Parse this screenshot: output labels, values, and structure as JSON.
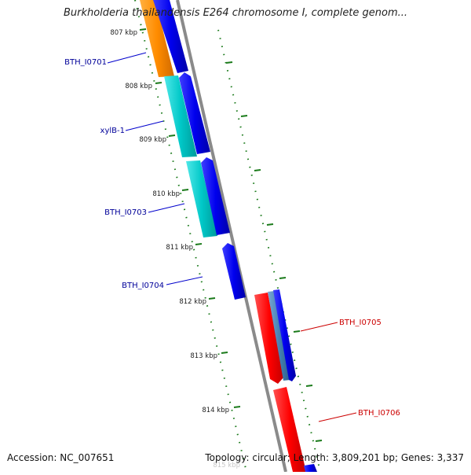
{
  "title": "Burkholderia thailandensis E264 chromosome I, complete genom...",
  "footer": {
    "accession": "Accession: NC_007651",
    "stats": "Topology: circular; Length: 3,809,201 bp; Genes: 3,337"
  },
  "ruler": {
    "ticks": [
      "807 kbp",
      "808 kbp",
      "809 kbp",
      "810 kbp",
      "811 kbp",
      "812 kbp",
      "813 kbp",
      "814 kbp"
    ],
    "partial_tick": "815 kbp"
  },
  "genes": [
    {
      "id": "BTH_I0701",
      "strand": "forward"
    },
    {
      "id": "xylB-1",
      "strand": "forward"
    },
    {
      "id": "BTH_I0703",
      "strand": "forward"
    },
    {
      "id": "BTH_I0704",
      "strand": "forward"
    },
    {
      "id": "BTH_I0705",
      "strand": "reverse"
    },
    {
      "id": "BTH_I0706",
      "strand": "reverse"
    }
  ],
  "colors": {
    "backbone": "#8a8a8a",
    "cds": "#0000ee",
    "orange_feature": "#ff8c00",
    "cyan_feature": "#00c8c8",
    "red_feature": "#ff0000",
    "steel_feature": "#4682b4",
    "forward_label": "#000099",
    "reverse_label": "#cc0000",
    "ruler": "#1a7a1a"
  }
}
